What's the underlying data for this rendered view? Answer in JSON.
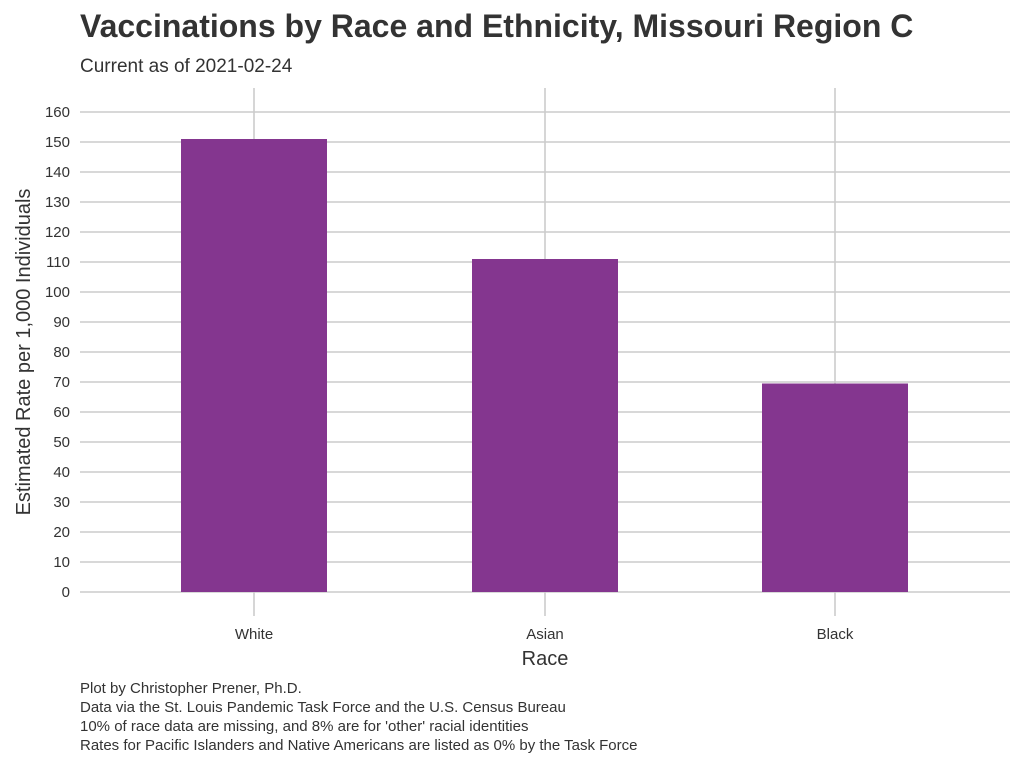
{
  "chart_data": {
    "type": "bar",
    "title": "Vaccinations by Race and Ethnicity, Missouri Region C",
    "subtitle": "Current as of 2021-02-24",
    "xlabel": "Race",
    "ylabel": "Estimated Rate per 1,000 Individuals",
    "categories": [
      "White",
      "Asian",
      "Black"
    ],
    "values": [
      151,
      111,
      69.5
    ],
    "ylim": [
      0,
      160
    ],
    "yticks": [
      0,
      10,
      20,
      30,
      40,
      50,
      60,
      70,
      80,
      90,
      100,
      110,
      120,
      130,
      140,
      150,
      160
    ],
    "grid": true,
    "legend": "none",
    "bar_color": "#84368f",
    "grid_color": "#cccccc",
    "caption": [
      "Plot by Christopher Prener, Ph.D.",
      "Data via the St. Louis Pandemic Task Force and the U.S. Census Bureau",
      "10% of race data are missing, and 8% are for 'other' racial identities",
      "Rates for Pacific Islanders and Native Americans are listed as 0% by the Task Force"
    ]
  }
}
